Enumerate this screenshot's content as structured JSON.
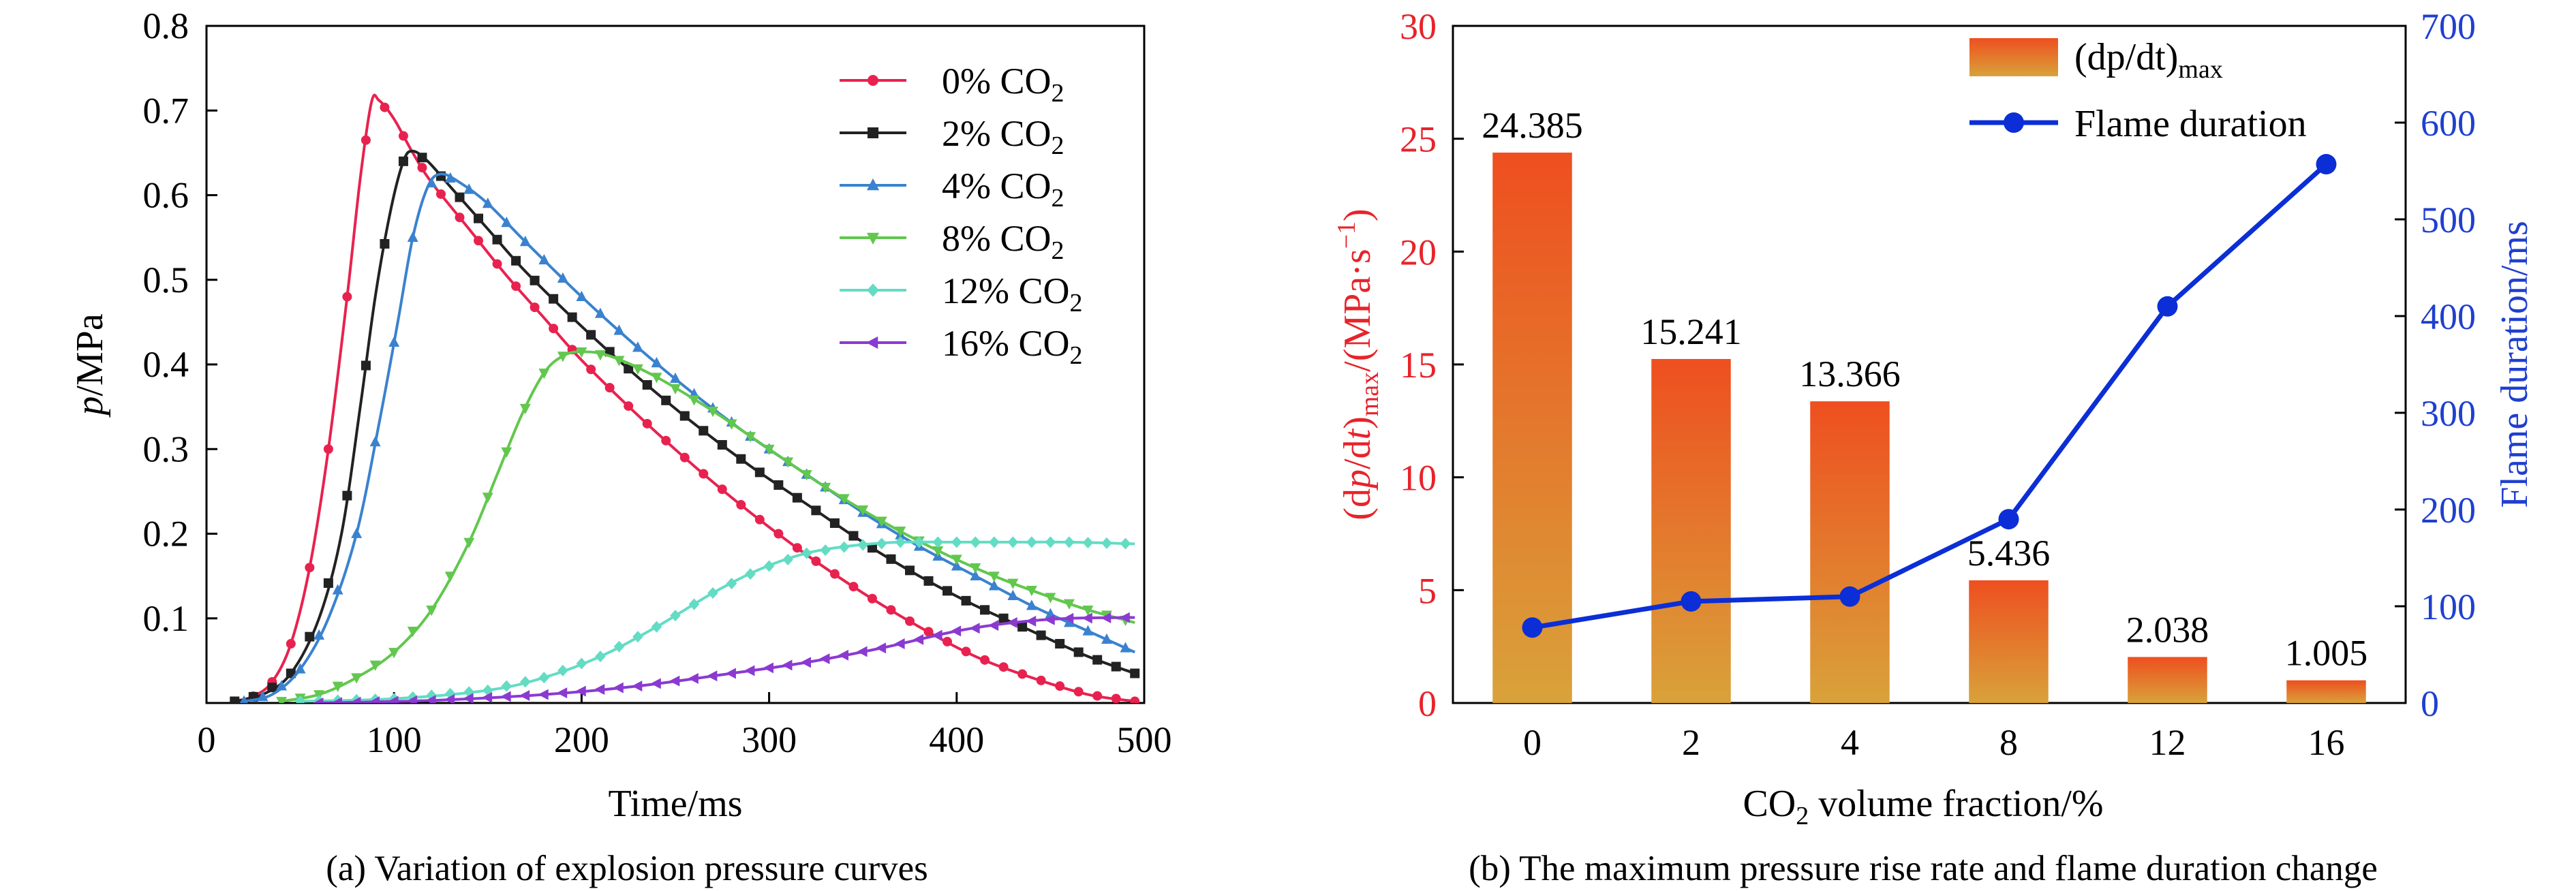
{
  "figure": {
    "panel_a_caption": "(a) Variation of explosion pressure curves",
    "panel_b_caption": "(b) The maximum pressure rise rate and flame duration change"
  },
  "colors": {
    "red_axis": "#e8232a",
    "blue_axis": "#1f3fcf",
    "bar_top": "#ee4f1f",
    "bar_bottom": "#d9a23a",
    "line": "#0b2ed6"
  },
  "chart_data": [
    {
      "type": "line",
      "panel": "a",
      "xlabel": "Time/ms",
      "ylabel_italic": "p",
      "ylabel_rest": "/MPa",
      "xlim": [
        0,
        500
      ],
      "ylim": [
        0,
        0.8
      ],
      "xticks": [
        "0",
        "100",
        "200",
        "300",
        "400",
        "500"
      ],
      "yticks": [
        "0.1",
        "0.2",
        "0.3",
        "0.4",
        "0.5",
        "0.6",
        "0.7",
        "0.8"
      ],
      "legend_position": "top-right",
      "series": [
        {
          "name": "0% CO",
          "sub": "2",
          "color": "#e8224f",
          "marker": "circle",
          "points": [
            [
              15,
              0.002
            ],
            [
              25,
              0.008
            ],
            [
              35,
              0.025
            ],
            [
              45,
              0.07
            ],
            [
              55,
              0.16
            ],
            [
              65,
              0.3
            ],
            [
              75,
              0.48
            ],
            [
              82,
              0.62
            ],
            [
              88,
              0.71
            ],
            [
              92,
              0.712
            ],
            [
              100,
              0.69
            ],
            [
              110,
              0.65
            ],
            [
              120,
              0.615
            ],
            [
              140,
              0.56
            ],
            [
              160,
              0.505
            ],
            [
              180,
              0.455
            ],
            [
              200,
              0.405
            ],
            [
              230,
              0.34
            ],
            [
              260,
              0.28
            ],
            [
              290,
              0.225
            ],
            [
              320,
              0.175
            ],
            [
              350,
              0.13
            ],
            [
              380,
              0.09
            ],
            [
              410,
              0.055
            ],
            [
              440,
              0.03
            ],
            [
              470,
              0.01
            ],
            [
              495,
              0.002
            ]
          ]
        },
        {
          "name": "2% CO",
          "sub": "2",
          "color": "#222222",
          "marker": "square",
          "points": [
            [
              15,
              0.002
            ],
            [
              30,
              0.01
            ],
            [
              45,
              0.035
            ],
            [
              60,
              0.1
            ],
            [
              72,
              0.2
            ],
            [
              82,
              0.35
            ],
            [
              90,
              0.48
            ],
            [
              98,
              0.58
            ],
            [
              105,
              0.64
            ],
            [
              110,
              0.652
            ],
            [
              118,
              0.64
            ],
            [
              130,
              0.61
            ],
            [
              150,
              0.56
            ],
            [
              170,
              0.51
            ],
            [
              200,
              0.445
            ],
            [
              230,
              0.385
            ],
            [
              260,
              0.33
            ],
            [
              290,
              0.28
            ],
            [
              320,
              0.235
            ],
            [
              350,
              0.19
            ],
            [
              380,
              0.15
            ],
            [
              410,
              0.115
            ],
            [
              440,
              0.085
            ],
            [
              470,
              0.055
            ],
            [
              495,
              0.035
            ]
          ]
        },
        {
          "name": "4% CO",
          "sub": "2",
          "color": "#3a82cf",
          "marker": "triangle-up",
          "points": [
            [
              20,
              0.002
            ],
            [
              35,
              0.01
            ],
            [
              50,
              0.04
            ],
            [
              65,
              0.1
            ],
            [
              80,
              0.2
            ],
            [
              92,
              0.33
            ],
            [
              102,
              0.45
            ],
            [
              110,
              0.55
            ],
            [
              118,
              0.61
            ],
            [
              125,
              0.625
            ],
            [
              135,
              0.615
            ],
            [
              150,
              0.59
            ],
            [
              170,
              0.545
            ],
            [
              200,
              0.48
            ],
            [
              230,
              0.42
            ],
            [
              260,
              0.365
            ],
            [
              290,
              0.315
            ],
            [
              320,
              0.27
            ],
            [
              350,
              0.225
            ],
            [
              380,
              0.185
            ],
            [
              410,
              0.15
            ],
            [
              440,
              0.115
            ],
            [
              470,
              0.085
            ],
            [
              495,
              0.06
            ]
          ]
        },
        {
          "name": "8% CO",
          "sub": "2",
          "color": "#62c74e",
          "marker": "triangle-down",
          "points": [
            [
              40,
              0.002
            ],
            [
              60,
              0.01
            ],
            [
              80,
              0.03
            ],
            [
              100,
              0.06
            ],
            [
              120,
              0.11
            ],
            [
              140,
              0.19
            ],
            [
              155,
              0.27
            ],
            [
              168,
              0.34
            ],
            [
              180,
              0.39
            ],
            [
              190,
              0.41
            ],
            [
              200,
              0.415
            ],
            [
              215,
              0.41
            ],
            [
              240,
              0.385
            ],
            [
              270,
              0.345
            ],
            [
              300,
              0.3
            ],
            [
              330,
              0.255
            ],
            [
              360,
              0.215
            ],
            [
              390,
              0.18
            ],
            [
              420,
              0.15
            ],
            [
              450,
              0.125
            ],
            [
              470,
              0.11
            ],
            [
              495,
              0.095
            ]
          ]
        },
        {
          "name": "12% CO",
          "sub": "2",
          "color": "#63dcc4",
          "marker": "diamond",
          "points": [
            [
              50,
              0.002
            ],
            [
              100,
              0.005
            ],
            [
              150,
              0.015
            ],
            [
              180,
              0.03
            ],
            [
              210,
              0.055
            ],
            [
              240,
              0.09
            ],
            [
              270,
              0.13
            ],
            [
              295,
              0.158
            ],
            [
              320,
              0.177
            ],
            [
              345,
              0.186
            ],
            [
              370,
              0.19
            ],
            [
              400,
              0.19
            ],
            [
              430,
              0.19
            ],
            [
              460,
              0.19
            ],
            [
              495,
              0.188
            ]
          ]
        },
        {
          "name": "16% CO",
          "sub": "2",
          "color": "#8b3ad1",
          "marker": "triangle-left",
          "points": [
            [
              60,
              0.0
            ],
            [
              120,
              0.003
            ],
            [
              180,
              0.01
            ],
            [
              230,
              0.02
            ],
            [
              280,
              0.035
            ],
            [
              320,
              0.048
            ],
            [
              360,
              0.065
            ],
            [
              400,
              0.085
            ],
            [
              430,
              0.095
            ],
            [
              460,
              0.1
            ],
            [
              495,
              0.101
            ]
          ]
        }
      ]
    },
    {
      "type": "bar",
      "panel": "b",
      "xlabel_main": "CO",
      "xlabel_sub": "2",
      "xlabel_rest": " volume fraction/%",
      "categories": [
        "0",
        "2",
        "4",
        "8",
        "12",
        "16"
      ],
      "values": [
        24.385,
        15.241,
        13.366,
        5.436,
        2.038,
        1.005
      ],
      "value_labels": [
        "24.385",
        "15.241",
        "13.366",
        "5.436",
        "2.038",
        "1.005"
      ],
      "ylim": [
        0,
        30
      ],
      "yticks": [
        "0",
        "5",
        "10",
        "15",
        "20",
        "25",
        "30"
      ],
      "y2lim": [
        0,
        700
      ],
      "y2ticks": [
        "0",
        "100",
        "200",
        "300",
        "400",
        "500",
        "600",
        "700"
      ],
      "ylabel_left": "(dp/dt)max/(MPa·s−1)",
      "ylabel_right": "Flame duration/ms",
      "bar_legend_main": "(dp/dt)",
      "bar_legend_sub": "max",
      "line_series": {
        "name": "Flame duration",
        "values": [
          78,
          105,
          110,
          190,
          410,
          557
        ]
      },
      "legend_position": "top-right"
    }
  ]
}
